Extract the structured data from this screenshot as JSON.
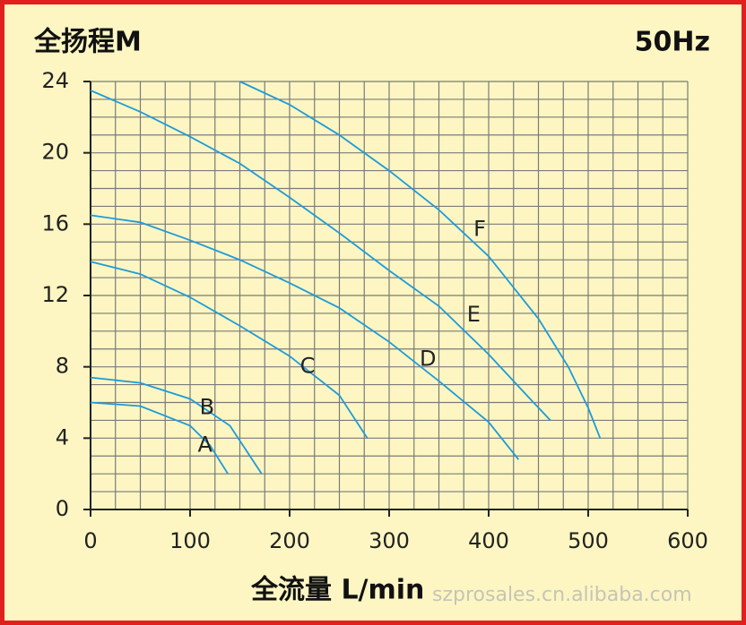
{
  "chart_data": {
    "type": "line",
    "title": "全扬程M",
    "subtitle": "50Hz",
    "x_label": "全流量 L/min",
    "watermark": "szprosales.cn.alibaba.com",
    "xlim": [
      0,
      600
    ],
    "ylim": [
      0,
      24
    ],
    "xticks": [
      0,
      100,
      200,
      300,
      400,
      500,
      600
    ],
    "yticks": [
      0,
      4,
      8,
      12,
      16,
      20,
      24
    ],
    "x_grid_lines": [
      0,
      25,
      50,
      75,
      100,
      125,
      150,
      175,
      200,
      225,
      250,
      275,
      300,
      325,
      350,
      375,
      400,
      425,
      450,
      475,
      500,
      525,
      550,
      575,
      600
    ],
    "y_grid_lines": [
      0,
      1,
      2,
      3,
      4,
      5,
      6,
      7,
      8,
      9,
      10,
      11,
      12,
      13,
      14,
      15,
      16,
      17,
      18,
      19,
      20,
      21,
      22,
      23,
      24
    ],
    "grid": true,
    "series": [
      {
        "name": "A",
        "color": "#1e9bd7",
        "x": [
          0,
          50,
          100,
          120,
          138
        ],
        "values": [
          6.0,
          5.8,
          4.7,
          3.6,
          2.0
        ]
      },
      {
        "name": "B",
        "color": "#1e9bd7",
        "x": [
          0,
          50,
          100,
          140,
          172
        ],
        "values": [
          7.4,
          7.1,
          6.2,
          4.7,
          2.0
        ]
      },
      {
        "name": "C",
        "color": "#1e9bd7",
        "x": [
          0,
          50,
          100,
          150,
          200,
          250,
          278
        ],
        "values": [
          13.9,
          13.2,
          11.9,
          10.3,
          8.6,
          6.4,
          4.0
        ]
      },
      {
        "name": "D",
        "color": "#1e9bd7",
        "x": [
          0,
          50,
          100,
          150,
          200,
          250,
          300,
          350,
          400,
          430
        ],
        "values": [
          16.5,
          16.1,
          15.1,
          14.0,
          12.7,
          11.3,
          9.4,
          7.2,
          4.9,
          2.8
        ]
      },
      {
        "name": "E",
        "color": "#1e9bd7",
        "x": [
          0,
          50,
          100,
          150,
          200,
          250,
          300,
          350,
          400,
          440,
          462
        ],
        "values": [
          23.5,
          22.3,
          20.9,
          19.4,
          17.5,
          15.5,
          13.4,
          11.4,
          8.7,
          6.3,
          5.0
        ]
      },
      {
        "name": "F",
        "color": "#1e9bd7",
        "x": [
          150,
          200,
          250,
          300,
          350,
          400,
          450,
          480,
          500,
          512
        ],
        "values": [
          24.0,
          22.7,
          21.0,
          19.0,
          16.8,
          14.2,
          10.7,
          8.0,
          5.7,
          4.0
        ]
      }
    ]
  }
}
